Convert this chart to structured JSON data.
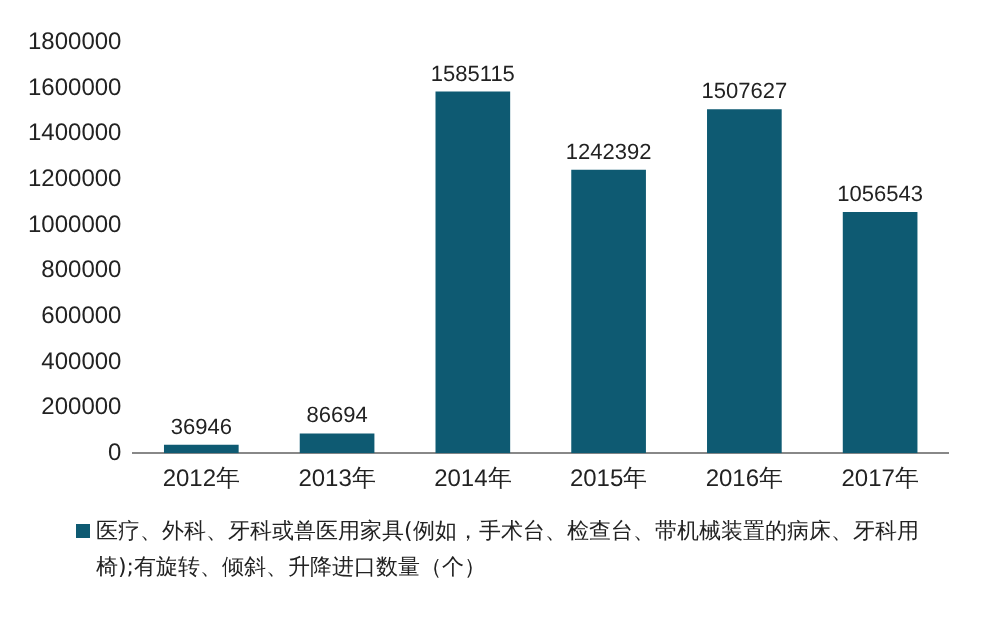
{
  "chart_data": {
    "type": "bar",
    "categories": [
      "2012年",
      "2013年",
      "2014年",
      "2015年",
      "2016年",
      "2017年"
    ],
    "series": [
      {
        "name": "医疗、外科、牙科或兽医用家具(例如，手术台、检查台、带机械装置的病床、牙科用椅);有旋转、倾斜、升降进口数量（个）",
        "color": "#0e5a72",
        "values": [
          36946,
          86694,
          1585115,
          1242392,
          1507627,
          1056543
        ]
      }
    ],
    "ylim": [
      0,
      1800000
    ],
    "yticks": [
      0,
      200000,
      400000,
      600000,
      800000,
      1000000,
      1200000,
      1400000,
      1600000,
      1800000
    ],
    "grid": false,
    "legend": "bottom",
    "data_labels": true
  }
}
